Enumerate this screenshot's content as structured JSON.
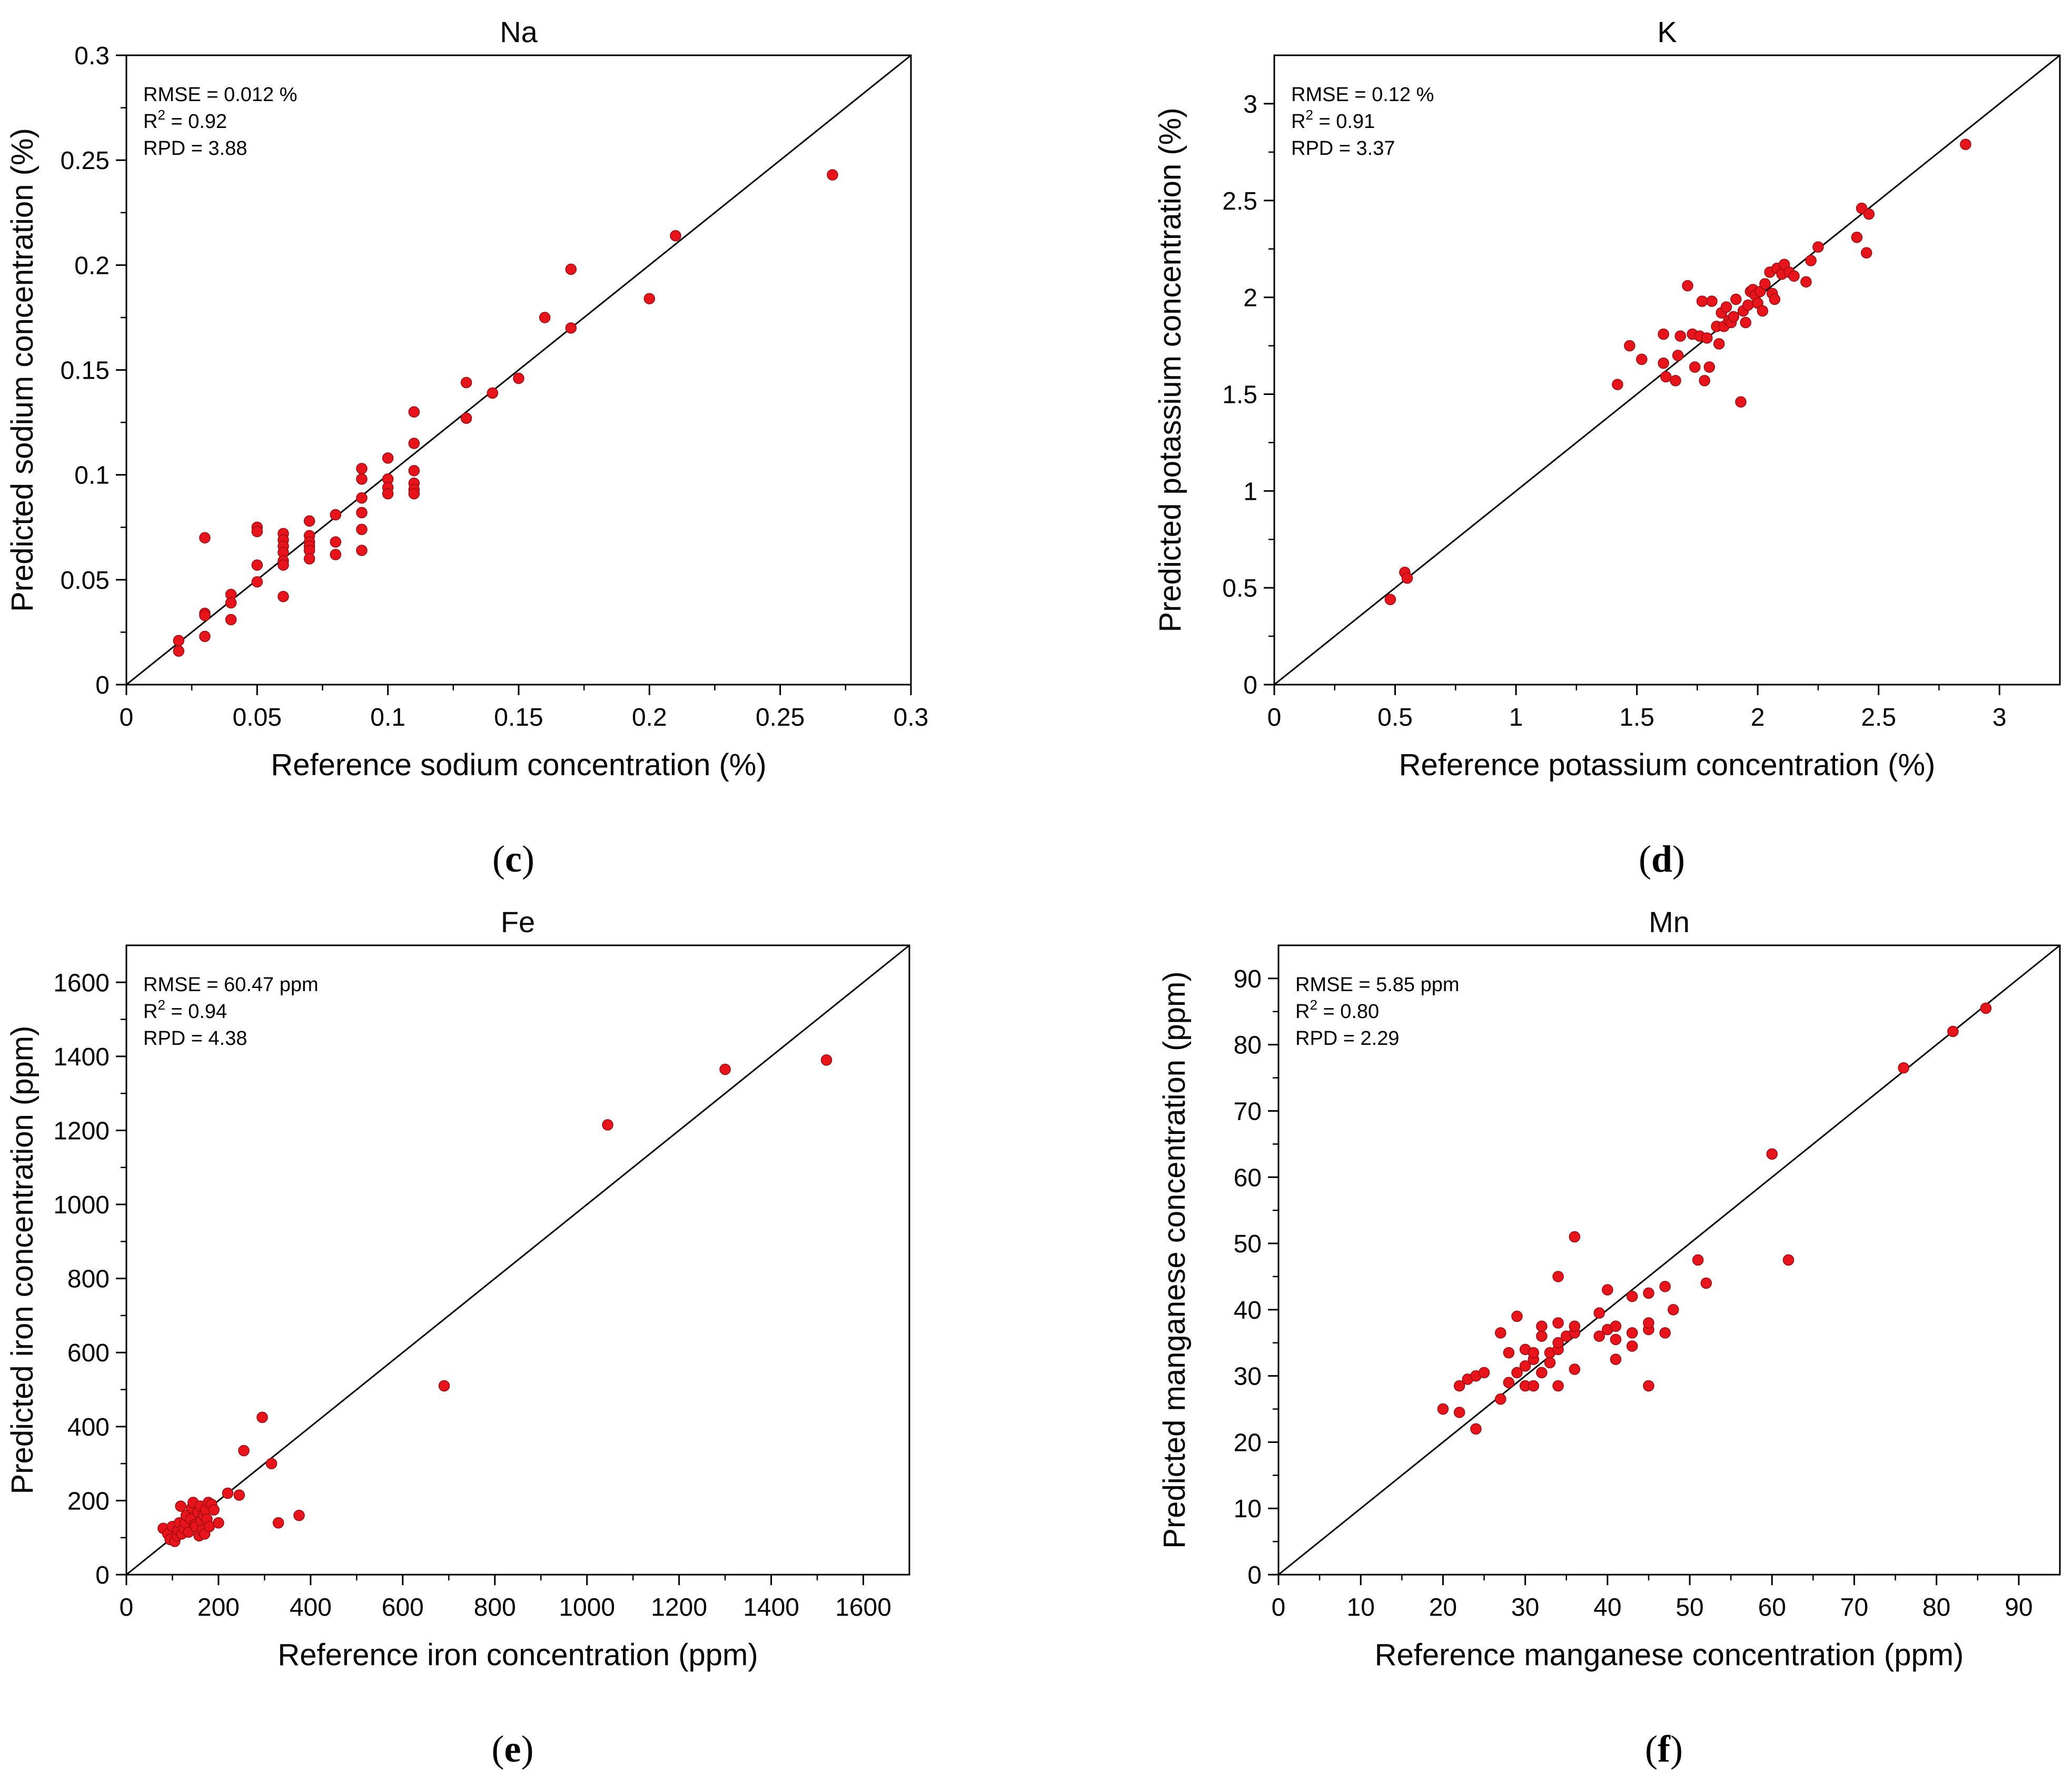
{
  "chart_data": [
    {
      "type": "scatter",
      "panel": "(c)",
      "panel_letter": "c",
      "title": "Na",
      "xlabel": "Reference sodium concentration (%)",
      "ylabel": "Predicted sodium concentration (%)",
      "xlim": [
        0,
        0.3
      ],
      "ylim": [
        0,
        0.3
      ],
      "xticks": [
        0,
        0.05,
        0.1,
        0.15,
        0.2,
        0.25,
        0.3
      ],
      "xtick_labels": [
        "0",
        "0.05",
        "0.1",
        "0.15",
        "0.2",
        "0.25",
        "0.3"
      ],
      "yticks": [
        0,
        0.05,
        0.1,
        0.15,
        0.2,
        0.25,
        0.3
      ],
      "ytick_labels": [
        "0",
        "0.05",
        "0.1",
        "0.15",
        "0.2",
        "0.25",
        "0.3"
      ],
      "stats": {
        "rmse": "RMSE = 0.012 %",
        "r2_prefix": "R",
        "r2_exp": "2",
        "r2_value": " = 0.92",
        "rpd": "RPD = 3.88"
      },
      "line": "1:1",
      "marker_color": "#e8141b",
      "points": [
        [
          0.02,
          0.021
        ],
        [
          0.02,
          0.016
        ],
        [
          0.03,
          0.07
        ],
        [
          0.03,
          0.034
        ],
        [
          0.03,
          0.033
        ],
        [
          0.03,
          0.023
        ],
        [
          0.04,
          0.043
        ],
        [
          0.04,
          0.039
        ],
        [
          0.04,
          0.031
        ],
        [
          0.05,
          0.075
        ],
        [
          0.05,
          0.073
        ],
        [
          0.05,
          0.057
        ],
        [
          0.05,
          0.049
        ],
        [
          0.06,
          0.072
        ],
        [
          0.06,
          0.069
        ],
        [
          0.06,
          0.066
        ],
        [
          0.06,
          0.063
        ],
        [
          0.06,
          0.059
        ],
        [
          0.06,
          0.057
        ],
        [
          0.06,
          0.042
        ],
        [
          0.07,
          0.078
        ],
        [
          0.07,
          0.071
        ],
        [
          0.07,
          0.068
        ],
        [
          0.07,
          0.066
        ],
        [
          0.07,
          0.064
        ],
        [
          0.07,
          0.06
        ],
        [
          0.08,
          0.081
        ],
        [
          0.08,
          0.068
        ],
        [
          0.08,
          0.062
        ],
        [
          0.09,
          0.103
        ],
        [
          0.09,
          0.098
        ],
        [
          0.09,
          0.089
        ],
        [
          0.09,
          0.082
        ],
        [
          0.09,
          0.074
        ],
        [
          0.09,
          0.064
        ],
        [
          0.1,
          0.108
        ],
        [
          0.1,
          0.098
        ],
        [
          0.1,
          0.094
        ],
        [
          0.1,
          0.091
        ],
        [
          0.11,
          0.13
        ],
        [
          0.11,
          0.115
        ],
        [
          0.11,
          0.102
        ],
        [
          0.11,
          0.096
        ],
        [
          0.11,
          0.093
        ],
        [
          0.11,
          0.091
        ],
        [
          0.13,
          0.144
        ],
        [
          0.13,
          0.127
        ],
        [
          0.14,
          0.139
        ],
        [
          0.15,
          0.146
        ],
        [
          0.16,
          0.175
        ],
        [
          0.17,
          0.198
        ],
        [
          0.17,
          0.17
        ],
        [
          0.2,
          0.184
        ],
        [
          0.21,
          0.214
        ],
        [
          0.27,
          0.243
        ]
      ]
    },
    {
      "type": "scatter",
      "panel": "(d)",
      "panel_letter": "d",
      "title": "K",
      "xlabel": "Reference potassium concentration  (%)",
      "ylabel": "Predicted potassium concentration (%)",
      "xlim": [
        0,
        3.25
      ],
      "ylim": [
        0,
        3.25
      ],
      "xticks": [
        0,
        0.5,
        1,
        1.5,
        2,
        2.5,
        3
      ],
      "xtick_labels": [
        "0",
        "0.5",
        "1",
        "1.5",
        "2",
        "2.5",
        "3"
      ],
      "yticks": [
        0,
        0.5,
        1,
        1.5,
        2,
        2.5,
        3
      ],
      "ytick_labels": [
        "0",
        "0.5",
        "1",
        "1.5",
        "2",
        "2.5",
        "3"
      ],
      "stats": {
        "rmse": "RMSE = 0.12 %",
        "r2_prefix": "R",
        "r2_exp": "2",
        "r2_value": " = 0.91",
        "rpd": "RPD = 3.37"
      },
      "line": "1:1",
      "marker_color": "#e8141b",
      "points": [
        [
          0.48,
          0.44
        ],
        [
          0.54,
          0.58
        ],
        [
          0.55,
          0.55
        ],
        [
          1.42,
          1.55
        ],
        [
          1.47,
          1.75
        ],
        [
          1.52,
          1.68
        ],
        [
          1.61,
          1.81
        ],
        [
          1.61,
          1.66
        ],
        [
          1.62,
          1.59
        ],
        [
          1.66,
          1.57
        ],
        [
          1.67,
          1.7
        ],
        [
          1.68,
          1.8
        ],
        [
          1.71,
          2.06
        ],
        [
          1.73,
          1.81
        ],
        [
          1.74,
          1.64
        ],
        [
          1.76,
          1.8
        ],
        [
          1.77,
          1.98
        ],
        [
          1.78,
          1.57
        ],
        [
          1.79,
          1.79
        ],
        [
          1.8,
          1.64
        ],
        [
          1.81,
          1.98
        ],
        [
          1.83,
          1.85
        ],
        [
          1.84,
          1.76
        ],
        [
          1.85,
          1.92
        ],
        [
          1.86,
          1.85
        ],
        [
          1.87,
          1.95
        ],
        [
          1.88,
          1.88
        ],
        [
          1.89,
          1.87
        ],
        [
          1.9,
          1.9
        ],
        [
          1.91,
          1.99
        ],
        [
          1.93,
          1.46
        ],
        [
          1.94,
          1.93
        ],
        [
          1.95,
          1.87
        ],
        [
          1.96,
          1.96
        ],
        [
          1.97,
          2.03
        ],
        [
          1.98,
          2.04
        ],
        [
          1.99,
          2.01
        ],
        [
          2.0,
          1.97
        ],
        [
          2.01,
          2.03
        ],
        [
          2.02,
          1.93
        ],
        [
          2.03,
          2.07
        ],
        [
          2.05,
          2.13
        ],
        [
          2.06,
          2.02
        ],
        [
          2.07,
          1.99
        ],
        [
          2.08,
          2.15
        ],
        [
          2.1,
          2.12
        ],
        [
          2.11,
          2.17
        ],
        [
          2.13,
          2.13
        ],
        [
          2.15,
          2.11
        ],
        [
          2.2,
          2.08
        ],
        [
          2.22,
          2.19
        ],
        [
          2.25,
          2.26
        ],
        [
          2.41,
          2.31
        ],
        [
          2.43,
          2.46
        ],
        [
          2.45,
          2.23
        ],
        [
          2.46,
          2.43
        ],
        [
          2.86,
          2.79
        ]
      ]
    },
    {
      "type": "scatter",
      "panel": "(e)",
      "panel_letter": "e",
      "title": "Fe",
      "xlabel": "Reference iron concentration (ppm)",
      "ylabel": "Predicted iron concentration (ppm)",
      "xlim": [
        0,
        1700
      ],
      "ylim": [
        0,
        1700
      ],
      "xticks": [
        0,
        200,
        400,
        600,
        800,
        1000,
        1200,
        1400,
        1600
      ],
      "xtick_labels": [
        "0",
        "200",
        "400",
        "600",
        "800",
        "1000",
        "1200",
        "1400",
        "1600"
      ],
      "yticks": [
        0,
        200,
        400,
        600,
        800,
        1000,
        1200,
        1400,
        1600
      ],
      "ytick_labels": [
        "0",
        "200",
        "400",
        "600",
        "800",
        "1000",
        "1200",
        "1400",
        "1600"
      ],
      "stats": {
        "rmse": "RMSE = 60.47 ppm",
        "r2_prefix": "R",
        "r2_exp": "2",
        "r2_value": " = 0.94",
        "rpd": "RPD = 4.38"
      },
      "line": "1:1",
      "marker_color": "#e8141b",
      "points": [
        [
          80,
          125
        ],
        [
          90,
          110
        ],
        [
          95,
          95
        ],
        [
          100,
          130
        ],
        [
          105,
          90
        ],
        [
          110,
          105
        ],
        [
          112,
          120
        ],
        [
          115,
          140
        ],
        [
          118,
          185
        ],
        [
          120,
          110
        ],
        [
          125,
          125
        ],
        [
          128,
          140
        ],
        [
          130,
          160
        ],
        [
          135,
          115
        ],
        [
          140,
          150
        ],
        [
          142,
          180
        ],
        [
          145,
          195
        ],
        [
          148,
          135
        ],
        [
          150,
          130
        ],
        [
          155,
          170
        ],
        [
          158,
          105
        ],
        [
          160,
          185
        ],
        [
          162,
          145
        ],
        [
          165,
          120
        ],
        [
          168,
          160
        ],
        [
          170,
          110
        ],
        [
          172,
          175
        ],
        [
          175,
          150
        ],
        [
          178,
          195
        ],
        [
          180,
          130
        ],
        [
          185,
          190
        ],
        [
          190,
          175
        ],
        [
          200,
          140
        ],
        [
          220,
          220
        ],
        [
          245,
          215
        ],
        [
          255,
          335
        ],
        [
          295,
          425
        ],
        [
          315,
          300
        ],
        [
          330,
          140
        ],
        [
          375,
          160
        ],
        [
          690,
          510
        ],
        [
          1045,
          1215
        ],
        [
          1300,
          1365
        ],
        [
          1520,
          1390
        ]
      ]
    },
    {
      "type": "scatter",
      "panel": "(f)",
      "panel_letter": "f",
      "title": "Mn",
      "xlabel": "Reference manganese concentration (ppm)",
      "ylabel": "Predicted manganese concentration (ppm)",
      "xlim": [
        0,
        95
      ],
      "ylim": [
        0,
        95
      ],
      "xticks": [
        0,
        10,
        20,
        30,
        40,
        50,
        60,
        70,
        80,
        90
      ],
      "xtick_labels": [
        "0",
        "10",
        "20",
        "30",
        "40",
        "50",
        "60",
        "70",
        "80",
        "90"
      ],
      "yticks": [
        0,
        10,
        20,
        30,
        40,
        50,
        60,
        70,
        80,
        90
      ],
      "ytick_labels": [
        "0",
        "10",
        "20",
        "30",
        "40",
        "50",
        "60",
        "70",
        "80",
        "90"
      ],
      "stats": {
        "rmse": "RMSE = 5.85 ppm",
        "r2_prefix": "R",
        "r2_exp": "2",
        "r2_value": " = 0.80",
        "rpd": "RPD = 2.29"
      },
      "line": "1:1",
      "marker_color": "#e8141b",
      "points": [
        [
          20,
          25
        ],
        [
          22,
          24.5
        ],
        [
          22,
          28.5
        ],
        [
          23,
          29.5
        ],
        [
          24,
          22
        ],
        [
          24,
          30
        ],
        [
          25,
          30.5
        ],
        [
          27,
          26.5
        ],
        [
          27,
          36.5
        ],
        [
          28,
          29
        ],
        [
          28,
          33.5
        ],
        [
          29,
          30.5
        ],
        [
          29,
          39
        ],
        [
          30,
          28.5
        ],
        [
          30,
          31.5
        ],
        [
          30,
          34
        ],
        [
          31,
          28.5
        ],
        [
          31,
          32.5
        ],
        [
          31,
          33.5
        ],
        [
          32,
          30.5
        ],
        [
          32,
          36
        ],
        [
          32,
          37.5
        ],
        [
          33,
          32
        ],
        [
          33,
          33.5
        ],
        [
          34,
          28.5
        ],
        [
          34,
          34
        ],
        [
          34,
          35
        ],
        [
          34,
          38
        ],
        [
          34,
          45
        ],
        [
          35,
          36
        ],
        [
          36,
          31
        ],
        [
          36,
          36.5
        ],
        [
          36,
          37.5
        ],
        [
          36,
          51
        ],
        [
          39,
          36
        ],
        [
          39,
          39.5
        ],
        [
          40,
          37
        ],
        [
          40,
          43
        ],
        [
          41,
          32.5
        ],
        [
          41,
          35.5
        ],
        [
          41,
          37.5
        ],
        [
          43,
          34.5
        ],
        [
          43,
          36.5
        ],
        [
          43,
          42
        ],
        [
          45,
          28.5
        ],
        [
          45,
          37
        ],
        [
          45,
          38
        ],
        [
          45,
          42.5
        ],
        [
          47,
          36.5
        ],
        [
          47,
          43.5
        ],
        [
          48,
          40
        ],
        [
          51,
          47.5
        ],
        [
          52,
          44
        ],
        [
          60,
          63.5
        ],
        [
          62,
          47.5
        ],
        [
          76,
          76.5
        ],
        [
          82,
          82
        ],
        [
          86,
          85.5
        ]
      ]
    }
  ]
}
